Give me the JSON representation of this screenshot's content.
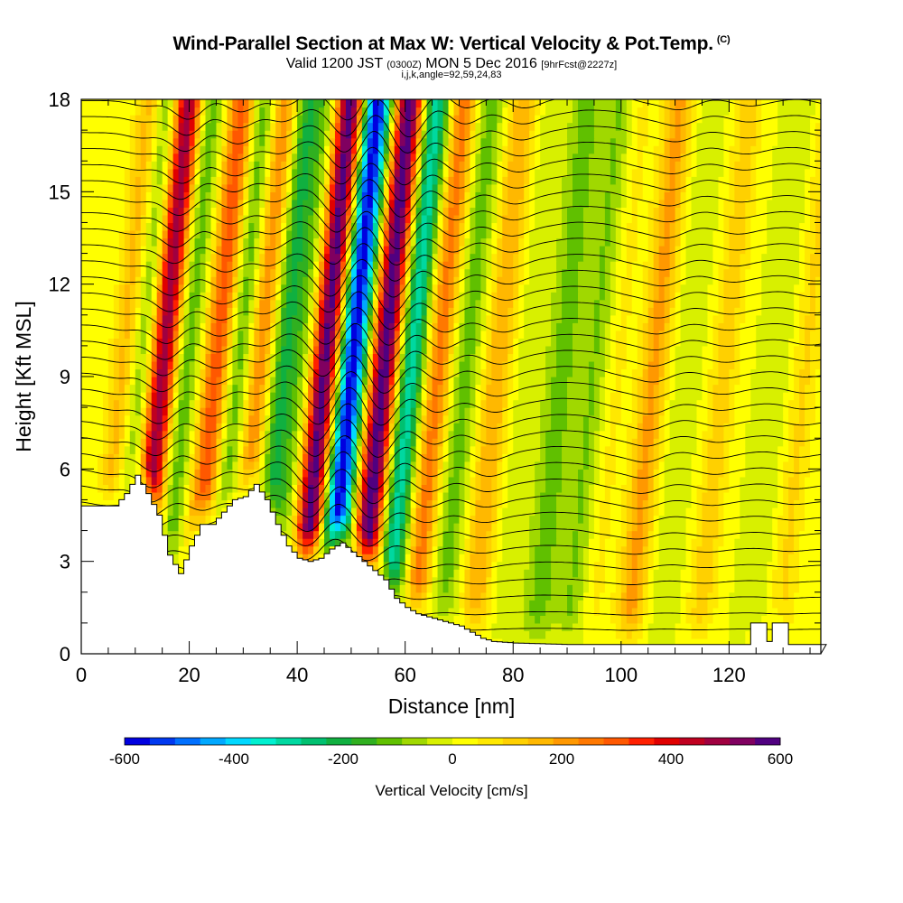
{
  "chart_data": {
    "type": "heatmap",
    "title": "Wind-Parallel Section at Max W: Vertical Velocity & Pot.Temp.",
    "title_mark": "(C)",
    "subtitle": {
      "main": "Valid 1200 JST",
      "utc": "(0300Z)",
      "date": "MON 5 Dec 2016",
      "forecast": "[9hrFcst@2227z]"
    },
    "params": "i,j,k,angle=92,59,24,83",
    "xlabel": "Distance [nm]",
    "ylabel": "Height [Kft MSL]",
    "xlim": [
      0,
      137
    ],
    "ylim": [
      0,
      18
    ],
    "x_ticks": [
      0,
      20,
      40,
      60,
      80,
      100,
      120
    ],
    "y_ticks": [
      0,
      3,
      6,
      9,
      12,
      15,
      18
    ],
    "grid": false,
    "colorbar": {
      "title": "Vertical Velocity [cm/s]",
      "ticks": [
        -600,
        -400,
        -200,
        0,
        200,
        400,
        600
      ],
      "colors": [
        "#0000e0",
        "#0038f0",
        "#0070ff",
        "#00a8ff",
        "#00d8ff",
        "#00f0d0",
        "#00d8a0",
        "#00c070",
        "#10b040",
        "#30b020",
        "#60c000",
        "#a0d800",
        "#d8f000",
        "#ffff00",
        "#ffe800",
        "#ffd000",
        "#ffb800",
        "#ff9800",
        "#ff7800",
        "#ff5800",
        "#ff2000",
        "#e00000",
        "#c00020",
        "#a00040",
        "#800060",
        "#500080"
      ]
    },
    "series": [
      {
        "x": 9,
        "w": 180
      },
      {
        "x": 12,
        "w": -160
      },
      {
        "x": 16,
        "w": 520
      },
      {
        "x": 20,
        "w": -150
      },
      {
        "x": 26,
        "w": 320
      },
      {
        "x": 30,
        "w": -160
      },
      {
        "x": 34,
        "w": 250
      },
      {
        "x": 38,
        "w": -200
      },
      {
        "x": 42,
        "w": -100
      },
      {
        "x": 46,
        "w": 600
      },
      {
        "x": 51,
        "w": -600
      },
      {
        "x": 57,
        "w": 600
      },
      {
        "x": 62,
        "w": -320
      },
      {
        "x": 67,
        "w": 260
      },
      {
        "x": 72,
        "w": -120
      },
      {
        "x": 78,
        "w": 180
      },
      {
        "x": 84,
        "w": -40
      },
      {
        "x": 90,
        "w": -120
      },
      {
        "x": 96,
        "w": -100
      },
      {
        "x": 100,
        "w": 60
      },
      {
        "x": 107,
        "w": 200
      },
      {
        "x": 113,
        "w": -40
      },
      {
        "x": 120,
        "w": 120
      },
      {
        "x": 130,
        "w": -40
      },
      {
        "x": 135,
        "w": 100
      }
    ],
    "terrain": [
      [
        0,
        4.8
      ],
      [
        3,
        4.8
      ],
      [
        6,
        4.8
      ],
      [
        8,
        5.2
      ],
      [
        10,
        5.8
      ],
      [
        12,
        5.2
      ],
      [
        14,
        4.5
      ],
      [
        16,
        3.2
      ],
      [
        18,
        2.6
      ],
      [
        20,
        3.5
      ],
      [
        22,
        4.2
      ],
      [
        24,
        4.2
      ],
      [
        26,
        4.6
      ],
      [
        28,
        5.0
      ],
      [
        30,
        5.1
      ],
      [
        32,
        5.5
      ],
      [
        34,
        5.0
      ],
      [
        36,
        4.2
      ],
      [
        38,
        3.5
      ],
      [
        40,
        3.1
      ],
      [
        42,
        3.0
      ],
      [
        44,
        3.1
      ],
      [
        46,
        3.4
      ],
      [
        48,
        3.6
      ],
      [
        50,
        3.3
      ],
      [
        52,
        3.0
      ],
      [
        54,
        2.7
      ],
      [
        56,
        2.4
      ],
      [
        58,
        1.8
      ],
      [
        60,
        1.5
      ],
      [
        62,
        1.3
      ],
      [
        64,
        1.2
      ],
      [
        66,
        1.1
      ],
      [
        68,
        1.0
      ],
      [
        70,
        0.9
      ],
      [
        72,
        0.7
      ],
      [
        74,
        0.5
      ],
      [
        76,
        0.4
      ],
      [
        80,
        0.35
      ],
      [
        90,
        0.3
      ],
      [
        100,
        0.3
      ],
      [
        110,
        0.3
      ],
      [
        120,
        0.3
      ],
      [
        123,
        0.3
      ],
      [
        124,
        1.0
      ],
      [
        126,
        1.0
      ],
      [
        127,
        0.4
      ],
      [
        128,
        1.0
      ],
      [
        130,
        1.0
      ],
      [
        131,
        0.3
      ],
      [
        137,
        0.3
      ]
    ]
  }
}
